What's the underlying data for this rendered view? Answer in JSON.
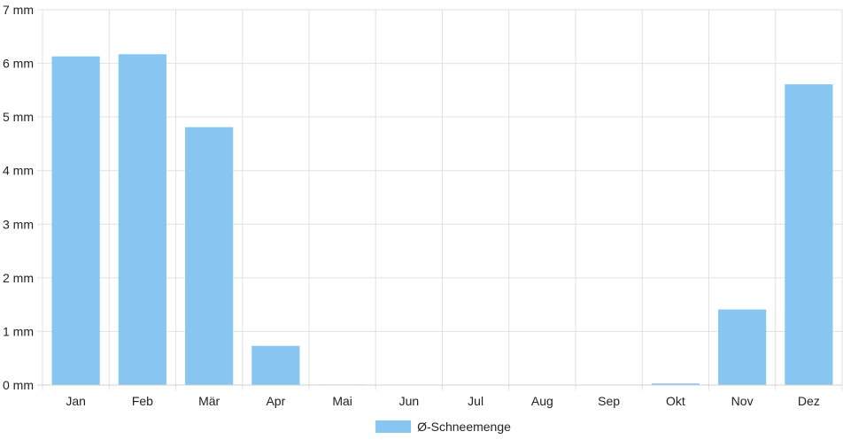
{
  "chart_data": {
    "type": "bar",
    "title": "",
    "xlabel": "",
    "ylabel": "",
    "categories": [
      "Jan",
      "Feb",
      "Mär",
      "Apr",
      "Mai",
      "Jun",
      "Jul",
      "Aug",
      "Sep",
      "Okt",
      "Nov",
      "Dez"
    ],
    "series": [
      {
        "name": "Ø-Schneemenge",
        "values": [
          6.13,
          6.17,
          4.81,
          0.73,
          0.01,
          0,
          0,
          0,
          0,
          0.03,
          1.41,
          5.61
        ],
        "color": "#88c6f2"
      }
    ],
    "ylim": [
      0,
      7
    ],
    "yticks": [
      0,
      1,
      2,
      3,
      4,
      5,
      6,
      7
    ],
    "ytick_labels": [
      "0 mm",
      "1 mm",
      "2 mm",
      "3 mm",
      "4 mm",
      "5 mm",
      "6 mm",
      "7 mm"
    ],
    "grid": true,
    "legend": "bottom-center",
    "colors": {
      "grid": "#e0e0e0",
      "axis": "#d0d0d0",
      "text": "#222222"
    }
  }
}
